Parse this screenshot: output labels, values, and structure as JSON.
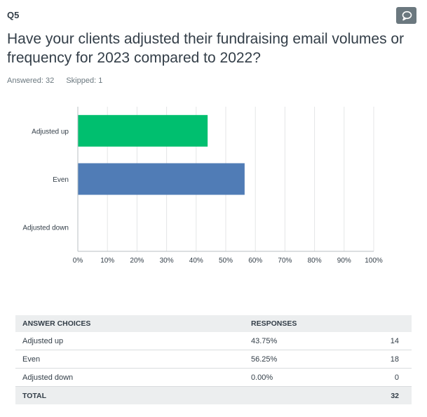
{
  "question": {
    "number": "Q5",
    "title": "Have your clients adjusted their fundraising email volumes or frequency for 2023 compared to 2022?",
    "answered_label": "Answered: 32",
    "skipped_label": "Skipped: 1",
    "comment_icon": "speech-bubble-icon"
  },
  "colors": {
    "bar_up": "#00bf6f",
    "bar_even": "#507cb6",
    "grid": "#e4e6e7",
    "axis": "#b9bfc3"
  },
  "chart_data": {
    "type": "bar",
    "orientation": "horizontal",
    "categories": [
      "Adjusted up",
      "Even",
      "Adjusted down"
    ],
    "values": [
      43.75,
      56.25,
      0.0
    ],
    "bar_colors": [
      "#00bf6f",
      "#507cb6",
      "#00bf6f"
    ],
    "xlim": [
      0,
      100
    ],
    "xticks": [
      0,
      10,
      20,
      30,
      40,
      50,
      60,
      70,
      80,
      90,
      100
    ],
    "xtick_labels": [
      "0%",
      "10%",
      "20%",
      "30%",
      "40%",
      "50%",
      "60%",
      "70%",
      "80%",
      "90%",
      "100%"
    ],
    "grid": true,
    "title": "",
    "xlabel": "",
    "ylabel": ""
  },
  "table": {
    "headers": [
      "ANSWER CHOICES",
      "RESPONSES",
      ""
    ],
    "rows": [
      {
        "choice": "Adjusted up",
        "percent": "43.75%",
        "count": "14"
      },
      {
        "choice": "Even",
        "percent": "56.25%",
        "count": "18"
      },
      {
        "choice": "Adjusted down",
        "percent": "0.00%",
        "count": "0"
      }
    ],
    "total_label": "TOTAL",
    "total_count": "32"
  }
}
